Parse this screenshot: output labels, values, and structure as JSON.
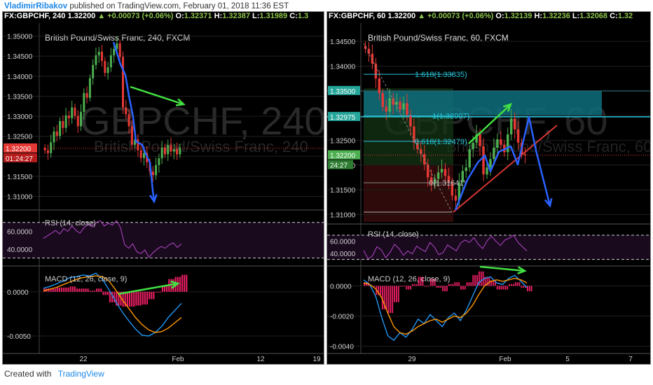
{
  "header": {
    "author": "VladimirRibakov",
    "published_text": "published on TradingView.com, February 01, 2018 11:36 EST"
  },
  "footer": {
    "created_with": "Created with",
    "brand": "TradingView"
  },
  "colors": {
    "bull": "#4caf50",
    "bear": "#e53935",
    "rsi": "#b246c8",
    "macd": "#2196f3",
    "signal": "#ff9800",
    "hist_pos": "#e91e63",
    "arrow_blue": "#2962ff",
    "arrow_green": "#43e043",
    "fib_teal": "#26c6da"
  },
  "left_pane": {
    "quote": {
      "symbol": "FX:GBPCHF, 240",
      "close": "1.32200",
      "change": "▲ +0.00073 (+0.06%)",
      "o_label": "O:",
      "o": "1.32371",
      "h_label": "H:",
      "h": "1.32387",
      "l_label": "L:",
      "l": "1.31989",
      "c_label": "C:",
      "c": "1.3"
    },
    "watermark_title": "British Pound/Swiss Franc, 240, FXCM",
    "price_label": "1.32200",
    "countdown": "01:24:27",
    "rsi_title": "RSI (14, close)",
    "macd_title": "MACD (12, 26, close, 9)"
  },
  "right_pane": {
    "quote": {
      "symbol": "FX:GBPCHF, 60",
      "close": "1.32200",
      "change": "▲ +0.00073 (+0.06%)",
      "o_label": "O:",
      "o": "1.32139",
      "h_label": "H:",
      "h": "1.32236",
      "l_label": "L:",
      "l": "1.32068",
      "c_label": "C:",
      "c": "1.32"
    },
    "watermark_title": "British Pound/Swiss Franc, 60, FXCM",
    "price_label": "1.32200",
    "countdown": "24:27",
    "zone_top_label": "1.33500",
    "zone_bottom_label": "1.32975",
    "fib_1618": "1.618(1.33835)",
    "fib_1": "1(1.32997)",
    "fib_0618": "0.618(1.32479)",
    "fib_0": "0(1.31641)",
    "rsi_title": "RSI (14, close)",
    "macd_title": "MACD (12, 26, close, 9)"
  },
  "chart_data": [
    {
      "type": "line",
      "title": "British Pound/Swiss Franc, 240, FXCM",
      "panel": "price",
      "x_ticks": [
        "22",
        "Feb",
        "12",
        "19"
      ],
      "y_ticks": [
        1.35,
        1.345,
        1.34,
        1.335,
        1.33,
        1.325,
        1.32,
        1.315,
        1.31
      ],
      "ylim": [
        1.308,
        1.3515
      ],
      "close": [
        1.3215,
        1.3208,
        1.3235,
        1.3262,
        1.3251,
        1.3288,
        1.3271,
        1.3302,
        1.3295,
        1.3322,
        1.3301,
        1.3275,
        1.3311,
        1.3358,
        1.3346,
        1.3395,
        1.3428,
        1.3452,
        1.3461,
        1.3438,
        1.3408,
        1.3422,
        1.3452,
        1.3468,
        1.3482,
        1.3448,
        1.3322,
        1.3305,
        1.3275,
        1.3229,
        1.3242,
        1.3215,
        1.3196,
        1.3208,
        1.3185,
        1.3162,
        1.3153,
        1.3178,
        1.3195,
        1.3222,
        1.3205,
        1.3228,
        1.3212,
        1.3218,
        1.3205,
        1.3222
      ],
      "last": 1.322
    },
    {
      "type": "line",
      "title": "RSI (14, close)",
      "panel": "rsi-240",
      "y_ticks": [
        60,
        40
      ],
      "ylim": [
        25,
        80
      ],
      "values": [
        52,
        55,
        58,
        61,
        57,
        63,
        60,
        66,
        61,
        58,
        64,
        68,
        65,
        70,
        72,
        66,
        69,
        67,
        72,
        64,
        45,
        41,
        46,
        37,
        35,
        39,
        31,
        36,
        40,
        43,
        41,
        45,
        47,
        42,
        46
      ]
    },
    {
      "type": "line",
      "title": "MACD (12, 26, close, 9)",
      "panel": "macd-240",
      "y_ticks": [
        0,
        -0.005
      ],
      "ylim": [
        -0.0065,
        0.0022
      ],
      "series": [
        {
          "values": [
            0.0004,
            0.0006,
            0.0009,
            0.0012,
            0.0016,
            0.0017,
            0.0019,
            0.0018,
            0.0021,
            0.0014,
            0.0002,
            -0.0011,
            -0.0023,
            -0.0033,
            -0.0042,
            -0.0049,
            -0.005,
            -0.0046,
            -0.0039,
            -0.0029,
            -0.0021,
            -0.0013
          ]
        },
        {
          "values": [
            0.0001,
            0.0003,
            0.0005,
            0.0008,
            0.0011,
            0.0014,
            0.0016,
            0.0017,
            0.0018,
            0.0017,
            0.0012,
            0.0002,
            -0.0009,
            -0.0019,
            -0.0029,
            -0.0037,
            -0.0043,
            -0.0046,
            -0.0045,
            -0.0041,
            -0.0035,
            -0.0029
          ]
        }
      ]
    },
    {
      "type": "line",
      "title": "British Pound/Swiss Franc, 60, FXCM",
      "panel": "price",
      "x_ticks": [
        "29",
        "Feb",
        "5",
        "7"
      ],
      "y_ticks": [
        1.345,
        1.34,
        1.335,
        1.33,
        1.325,
        1.32,
        1.315,
        1.31
      ],
      "ylim": [
        1.3085,
        1.347
      ],
      "close": [
        1.3435,
        1.3425,
        1.3405,
        1.3375,
        1.3345,
        1.3318,
        1.3308,
        1.3335,
        1.3322,
        1.3328,
        1.3312,
        1.3325,
        1.3301,
        1.3278,
        1.3245,
        1.3232,
        1.3222,
        1.3201,
        1.3175,
        1.3161,
        1.3172,
        1.3185,
        1.3192,
        1.3178,
        1.3165,
        1.3138,
        1.3128,
        1.3165,
        1.3188,
        1.3195,
        1.3232,
        1.3245,
        1.3262,
        1.3238,
        1.3181,
        1.3195,
        1.3212,
        1.3235,
        1.3252,
        1.3241,
        1.3226,
        1.3262,
        1.3294,
        1.3272,
        1.3245,
        1.3222,
        1.322
      ],
      "last": 1.322,
      "fib_levels": [
        1.33835,
        1.32997,
        1.32479,
        1.31641
      ]
    },
    {
      "type": "line",
      "title": "RSI (14, close)",
      "panel": "rsi-60",
      "y_ticks": [
        60,
        40
      ],
      "ylim": [
        25,
        85
      ],
      "values": [
        45,
        31,
        36,
        51,
        46,
        33,
        42,
        55,
        48,
        37,
        44,
        39,
        52,
        47,
        43,
        58,
        51,
        38,
        41,
        54,
        49,
        44,
        57,
        62,
        58,
        66,
        55,
        48,
        61,
        68,
        60,
        53,
        62,
        65,
        70,
        58,
        51,
        44
      ]
    },
    {
      "type": "line",
      "title": "MACD (12, 26, close, 9)",
      "panel": "macd-60",
      "y_ticks": [
        0,
        -0.002,
        -0.004
      ],
      "ylim": [
        -0.0042,
        0.0009
      ],
      "series": [
        {
          "values": [
            0.0004,
            0.0001,
            -0.0007,
            -0.0021,
            -0.0033,
            -0.0036,
            -0.0031,
            -0.0034,
            -0.0029,
            -0.0022,
            -0.0025,
            -0.0019,
            -0.0023,
            -0.0027,
            -0.0021,
            -0.0018,
            -0.0023,
            -0.0016,
            -0.0007,
            0.0002,
            0.0005,
            0.0006,
            0.0002,
            0.0001,
            0.0005,
            0.0007,
            0.0003,
            -0.0001
          ]
        },
        {
          "values": [
            0.0002,
            0.0001,
            -0.0002,
            -0.0008,
            -0.0018,
            -0.0027,
            -0.0031,
            -0.0032,
            -0.003,
            -0.0027,
            -0.0025,
            -0.0023,
            -0.0022,
            -0.0024,
            -0.0022,
            -0.002,
            -0.0021,
            -0.0018,
            -0.0013,
            -0.0006,
            0.0,
            0.0003,
            0.0004,
            0.0003,
            0.0004,
            0.0005,
            0.0004,
            0.0002
          ]
        }
      ]
    }
  ]
}
